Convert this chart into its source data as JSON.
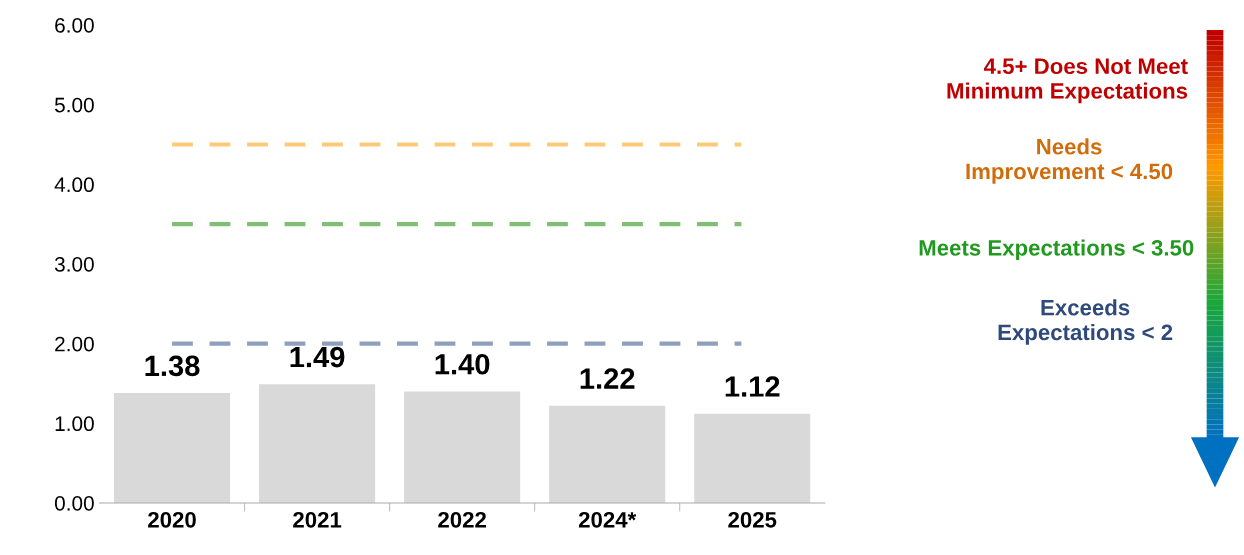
{
  "chart_data": {
    "type": "bar",
    "categories": [
      "2020",
      "2021",
      "2022",
      "2024*",
      "2025"
    ],
    "values": [
      1.38,
      1.49,
      1.4,
      1.22,
      1.12
    ],
    "color": "#d9d9d9",
    "value_labels": [
      "1.38",
      "1.49",
      "1.40",
      "1.22",
      "1.12"
    ],
    "ylim": [
      0,
      6
    ],
    "yticks": [
      {
        "value": 0,
        "label": "0.00"
      },
      {
        "value": 1,
        "label": "1.00"
      },
      {
        "value": 2,
        "label": "2.00"
      },
      {
        "value": 3,
        "label": "3.00"
      },
      {
        "value": 4,
        "label": "4.00"
      },
      {
        "value": 5,
        "label": "5.00"
      },
      {
        "value": 6,
        "label": "6.00"
      }
    ],
    "grid": false,
    "ref_lines": [
      {
        "axis": "y",
        "value": 4.5,
        "color": "#ffc97a",
        "line_style": "dashed"
      },
      {
        "axis": "y",
        "value": 3.5,
        "color": "#7fbf73",
        "line_style": "dashed"
      },
      {
        "axis": "y",
        "value": 2,
        "color": "#8ea0bb",
        "line_style": "dashed"
      }
    ],
    "annotations": [
      "4.5+ Does Not Meet\nMinimum Expectations",
      "Needs\nImprovement < 4.50",
      "Meets Expectations < 3.50",
      "Exceeds\nExpectations < 2"
    ]
  }
}
